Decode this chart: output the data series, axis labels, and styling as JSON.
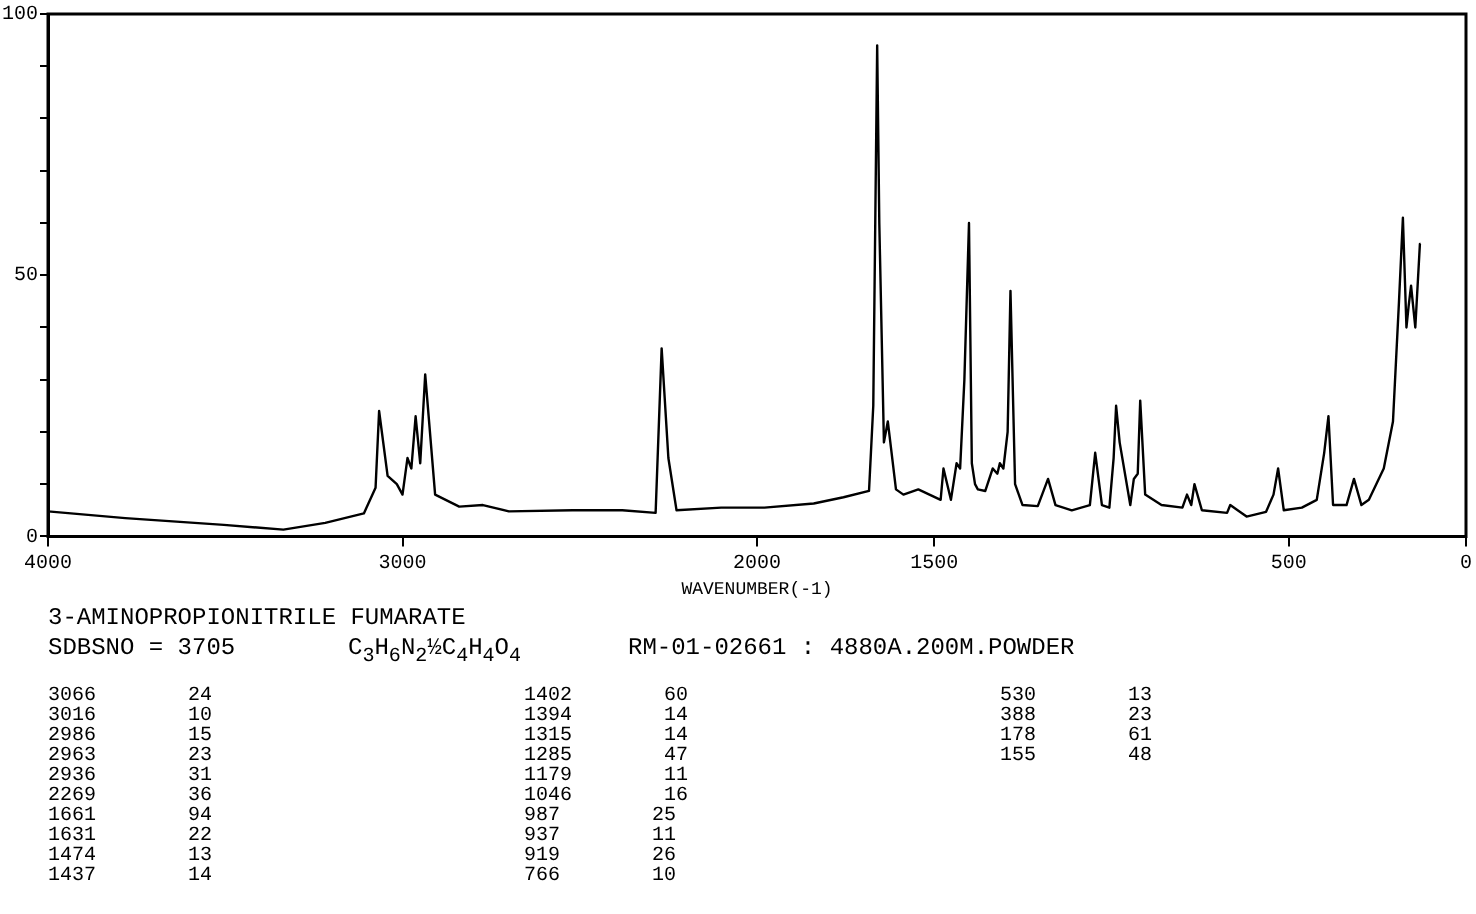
{
  "chart_data": {
    "type": "line",
    "title": "3-AMINOPROPIONITRILE FUMARATE",
    "subtitle": "SDBSNO = 3705",
    "xlabel": "WAVENUMBER(-1)",
    "xlim": [
      4000,
      0
    ],
    "xticks": [
      4000,
      3000,
      2000,
      1500,
      500,
      0
    ],
    "ylim": [
      0,
      100
    ],
    "yticks": [
      0,
      {
        "value": 10,
        "label": null
      },
      {
        "value": 20,
        "label": null
      },
      {
        "value": 30,
        "label": null
      },
      {
        "value": 40,
        "label": null
      },
      50,
      {
        "value": 60,
        "label": null
      },
      {
        "value": 70,
        "label": null
      },
      {
        "value": 80,
        "label": null
      },
      {
        "value": 90,
        "label": null
      },
      100
    ],
    "grid": false,
    "legend": false,
    "marker": "none",
    "line_style": "solid",
    "x": [
      4000,
      3782,
      3504,
      3336,
      3218,
      3109,
      3076,
      3066,
      3042,
      3016,
      3000,
      2986,
      2975,
      2963,
      2950,
      2936,
      2908,
      2840,
      2773,
      2700,
      2521,
      2380,
      2286,
      2269,
      2250,
      2227,
      2101,
      1979,
      1840,
      1756,
      1684,
      1672,
      1661,
      1655,
      1642,
      1631,
      1608,
      1587,
      1545,
      1482,
      1474,
      1453,
      1437,
      1427,
      1415,
      1402,
      1394,
      1385,
      1377,
      1356,
      1335,
      1322,
      1315,
      1305,
      1293,
      1285,
      1272,
      1251,
      1208,
      1179,
      1158,
      1112,
      1061,
      1046,
      1027,
      1006,
      994,
      987,
      977,
      947,
      937,
      926,
      919,
      905,
      859,
      800,
      787,
      775,
      766,
      745,
      674,
      665,
      619,
      564,
      543,
      530,
      514,
      463,
      421,
      400,
      388,
      375,
      337,
      316,
      295,
      274,
      232,
      206,
      189,
      178,
      168,
      162,
      155,
      143,
      130,
      128
    ],
    "series": [
      {
        "color": "#000000",
        "values": [
          4.8,
          3.5,
          2.2,
          1.3,
          2.6,
          4.4,
          9.3,
          24,
          11.6,
          10,
          8,
          15,
          13,
          23,
          14,
          31,
          8,
          5.7,
          6,
          4.8,
          5,
          5,
          4.5,
          36,
          15,
          5,
          5.5,
          5.5,
          6.3,
          7.5,
          8.7,
          25,
          94,
          60,
          18,
          22,
          9,
          8,
          9,
          7,
          13,
          7,
          14,
          13,
          30,
          60,
          14,
          10,
          9,
          8.7,
          13,
          12,
          14,
          13,
          20,
          47,
          10,
          6,
          5.8,
          11,
          6,
          5,
          6,
          16,
          6,
          5.5,
          15,
          25,
          18,
          6,
          11,
          12,
          26,
          8,
          6,
          5.5,
          8,
          6,
          10,
          5,
          4.5,
          6,
          3.8,
          4.7,
          8,
          13,
          5,
          5.5,
          7,
          16,
          23,
          6,
          6,
          11,
          6,
          7,
          13,
          22,
          45,
          61,
          40,
          44,
          48,
          40,
          56,
          56
        ]
      }
    ],
    "annotations": [
      "C$_{3}$H$_{6}$N$_{2}$½C$_{4}$H$_{4}$O$_{4}$",
      "RM-01-02661 : 4880A.200M.POWDER",
      "3066 24",
      "3016 10",
      "2986 15",
      "2963 23",
      "2936 31",
      "2269 36",
      "1661 94",
      "1631 22",
      "1474 13",
      "1437 14",
      "1402 60",
      "1394 14",
      "1315 14",
      "1285 47",
      "1179 11",
      "1046 16",
      "987 25",
      "937 11",
      "919 26",
      "766 10",
      "530 13",
      "388 23",
      "178 61",
      "155 48"
    ]
  }
}
